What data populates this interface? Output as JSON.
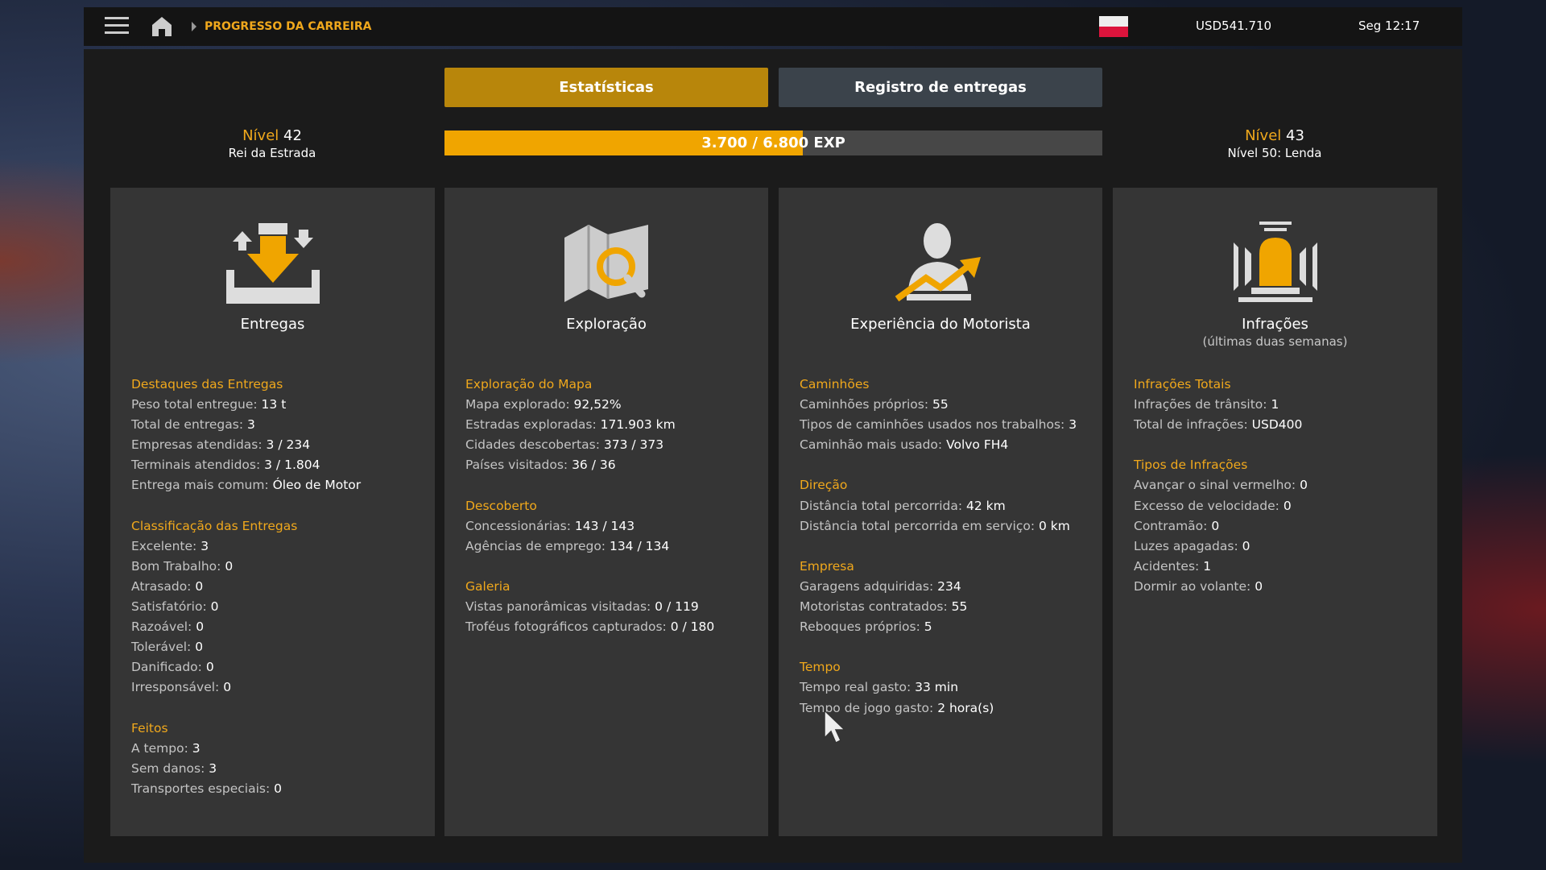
{
  "header": {
    "breadcrumb": "PROGRESSO DA CARREIRA",
    "money": "USD541.710",
    "clock": "Seg 12:17",
    "flag": "poland-flag-icon"
  },
  "tabs": [
    {
      "label": "Estatísticas",
      "active": true
    },
    {
      "label": "Registro de entregas",
      "active": false
    }
  ],
  "level": {
    "current_label": "Nível",
    "current": "42",
    "current_title": "Rei da Estrada",
    "next_label": "Nível",
    "next": "43",
    "next_title": "Nível 50: Lenda"
  },
  "exp": {
    "text": "3.700 / 6.800 EXP",
    "current": 3700,
    "max": 6800,
    "fraction": 0.544
  },
  "colors": {
    "accent": "#f0a81c",
    "tab_active": "#b8860b",
    "tab_inactive": "#3b434b"
  },
  "cards": [
    {
      "title": "Entregas",
      "icon": "deliveries-icon",
      "sections": [
        {
          "heading": "Destaques das Entregas",
          "rows": [
            [
              "Peso total entregue: ",
              "13 t"
            ],
            [
              "Total de entregas: ",
              "3"
            ],
            [
              "Empresas atendidas: ",
              "3 / 234"
            ],
            [
              "Terminais atendidos: ",
              "3 / 1.804"
            ],
            [
              "Entrega mais comum: ",
              "Óleo de Motor"
            ]
          ]
        },
        {
          "heading": "Classificação das Entregas",
          "rows": [
            [
              "Excelente: ",
              "3"
            ],
            [
              "Bom Trabalho: ",
              "0"
            ],
            [
              "Atrasado: ",
              "0"
            ],
            [
              "Satisfatório: ",
              "0"
            ],
            [
              "Razoável: ",
              "0"
            ],
            [
              "Tolerável: ",
              "0"
            ],
            [
              "Danificado: ",
              "0"
            ],
            [
              "Irresponsável: ",
              "0"
            ]
          ]
        },
        {
          "heading": "Feitos",
          "rows": [
            [
              "A tempo: ",
              "3"
            ],
            [
              "Sem danos: ",
              "3"
            ],
            [
              "Transportes especiais: ",
              "0"
            ]
          ]
        }
      ]
    },
    {
      "title": "Exploração",
      "icon": "map-search-icon",
      "sections": [
        {
          "heading": "Exploração do Mapa",
          "rows": [
            [
              "Mapa explorado: ",
              "92,52%"
            ],
            [
              "Estradas exploradas: ",
              "171.903 km"
            ],
            [
              "Cidades descobertas: ",
              "373 / 373"
            ],
            [
              "Países visitados: ",
              "36 / 36"
            ]
          ]
        },
        {
          "heading": "Descoberto",
          "rows": [
            [
              "Concessionárias: ",
              "143 / 143"
            ],
            [
              "Agências de emprego: ",
              "134 / 134"
            ]
          ]
        },
        {
          "heading": "Galeria",
          "rows": [
            [
              "Vistas panorâmicas visitadas: ",
              "0 / 119"
            ],
            [
              "Troféus fotográficos capturados: ",
              "0 / 180"
            ]
          ]
        }
      ]
    },
    {
      "title": "Experiência do Motorista",
      "icon": "driver-growth-icon",
      "sections": [
        {
          "heading": "Caminhões",
          "rows": [
            [
              "Caminhões próprios: ",
              "55"
            ],
            [
              "Tipos de caminhões usados nos trabalhos: ",
              "3"
            ],
            [
              "Caminhão mais usado: ",
              "Volvo FH4"
            ]
          ]
        },
        {
          "heading": "Direção",
          "rows": [
            [
              "Distância total percorrida: ",
              "42 km"
            ],
            [
              "Distância total percorrida em serviço: ",
              "0 km"
            ]
          ]
        },
        {
          "heading": "Empresa",
          "rows": [
            [
              "Garagens adquiridas: ",
              "234"
            ],
            [
              "Motoristas contratados: ",
              "55"
            ],
            [
              "Reboques próprios: ",
              "5"
            ]
          ]
        },
        {
          "heading": "Tempo",
          "rows": [
            [
              "Tempo real gasto: ",
              "33 min"
            ],
            [
              "Tempo de jogo gasto: ",
              "2 hora(s)"
            ]
          ]
        }
      ]
    },
    {
      "title": "Infrações",
      "subtitle": "(últimas duas semanas)",
      "icon": "siren-icon",
      "sections": [
        {
          "heading": "Infrações Totais",
          "rows": [
            [
              "Infrações de trânsito: ",
              "1"
            ],
            [
              "Total de infrações: ",
              "USD400"
            ]
          ]
        },
        {
          "heading": "Tipos de Infrações",
          "rows": [
            [
              "Avançar o sinal vermelho: ",
              "0"
            ],
            [
              "Excesso de velocidade: ",
              "0"
            ],
            [
              "Contramão: ",
              "0"
            ],
            [
              "Luzes apagadas: ",
              "0"
            ],
            [
              "Acidentes: ",
              "1"
            ],
            [
              "Dormir ao volante: ",
              "0"
            ]
          ]
        }
      ]
    }
  ]
}
